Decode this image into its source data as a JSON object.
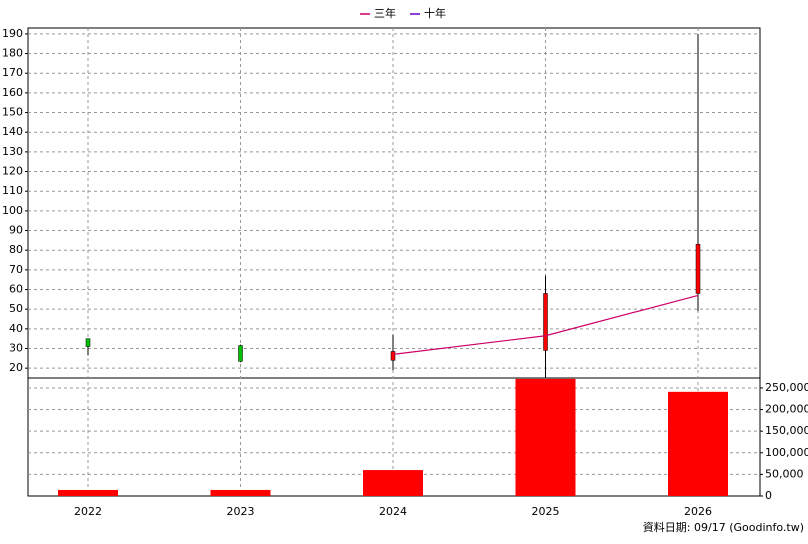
{
  "chart_data": [
    {
      "type": "candlestick",
      "categories": [
        "2022",
        "2023",
        "2024",
        "2025",
        "2026"
      ],
      "open": [
        35,
        31.5,
        24,
        29,
        58
      ],
      "high": [
        35,
        32,
        37,
        67,
        190
      ],
      "low": [
        26.5,
        23,
        19,
        15,
        49
      ],
      "close": [
        31,
        23.5,
        28.5,
        58,
        83
      ],
      "up_color": "#ff0000",
      "down_color": "#00c000",
      "series": [
        {
          "name": "三年",
          "color": "#cc0066",
          "values": [
            null,
            null,
            27,
            36.5,
            57
          ]
        },
        {
          "name": "十年",
          "color": "#6600cc",
          "values": [
            null,
            null,
            null,
            null,
            null
          ]
        }
      ],
      "ylim": [
        15,
        193
      ],
      "yticks": [
        20,
        30,
        40,
        50,
        60,
        70,
        80,
        90,
        100,
        110,
        120,
        130,
        140,
        150,
        160,
        170,
        180,
        190
      ],
      "grid": true
    },
    {
      "type": "bar",
      "values": [
        14000,
        14000,
        60000,
        271000,
        241000
      ],
      "color": "#ff0000",
      "ylim": [
        0,
        273000
      ],
      "yticks": [
        0,
        {
          "value": 50000,
          "label": "50,000"
        },
        {
          "value": 100000,
          "label": "100,000"
        },
        {
          "value": 150000,
          "label": "150,000"
        },
        {
          "value": 200000,
          "label": "200,000"
        },
        {
          "value": 250000,
          "label": "250,000"
        }
      ],
      "grid": true,
      "source": "資料日期: 09/17  (Goodinfo.tw)"
    }
  ]
}
